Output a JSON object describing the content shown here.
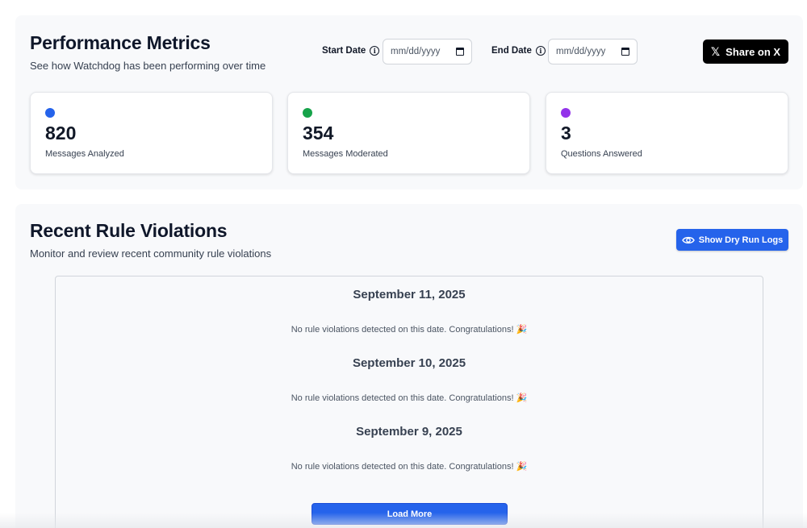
{
  "metrics": {
    "title": "Performance Metrics",
    "subtitle": "See how Watchdog has been performing over time",
    "start_date": {
      "label": "Start Date",
      "placeholder": "mm/dd/yyyy"
    },
    "end_date": {
      "label": "End Date",
      "placeholder": "mm/dd/yyyy"
    },
    "share_label": "Share on X",
    "share_icon": "𝕏",
    "cards": [
      {
        "value": "820",
        "label": "Messages Analyzed",
        "color": "#2563eb"
      },
      {
        "value": "354",
        "label": "Messages Moderated",
        "color": "#16a34a"
      },
      {
        "value": "3",
        "label": "Questions Answered",
        "color": "#9333ea"
      }
    ]
  },
  "violations": {
    "title": "Recent Rule Violations",
    "subtitle": "Monitor and review recent community rule violations",
    "dry_run_label": "Show Dry Run Logs",
    "days": [
      {
        "date": "September 11, 2025",
        "message": "No rule violations detected on this date. Congratulations! 🎉"
      },
      {
        "date": "September 10, 2025",
        "message": "No rule violations detected on this date. Congratulations! 🎉"
      },
      {
        "date": "September 9, 2025",
        "message": "No rule violations detected on this date. Congratulations! 🎉"
      }
    ],
    "load_more_label": "Load More"
  },
  "colors": {
    "accent": "#2563eb",
    "share_button": "#000000",
    "panel_bg": "#f8f9fb"
  }
}
